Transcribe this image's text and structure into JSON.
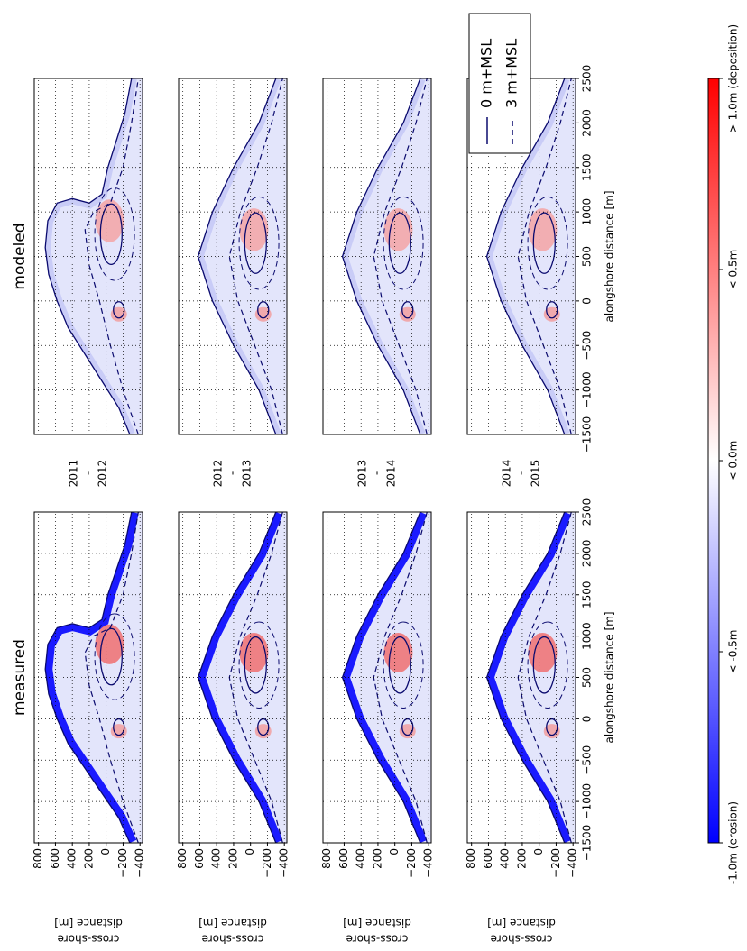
{
  "chart_data": {
    "type": "heatmap",
    "columns": [
      "measured",
      "modeled"
    ],
    "periods": [
      [
        "2011",
        "-",
        "2012"
      ],
      [
        "2012",
        "-",
        "2013"
      ],
      [
        "2013",
        "-",
        "2014"
      ],
      [
        "2014",
        "-",
        "2015"
      ]
    ],
    "xlabel": "alongshore distance [m]",
    "ylabel": [
      "cross-shore",
      "distance [m]"
    ],
    "xlim": [
      -1500,
      2500
    ],
    "xticks": [
      {
        "value": -1500,
        "label": "−1500"
      },
      {
        "value": -1000,
        "label": "−1000"
      },
      {
        "value": -500,
        "label": "−500"
      },
      0,
      500,
      1000,
      1500,
      2000,
      2500
    ],
    "ylim": [
      -430,
      850
    ],
    "yticks": [
      800,
      600,
      400,
      200,
      0,
      {
        "value": -200,
        "label": "−200"
      },
      {
        "value": -400,
        "label": "−400"
      }
    ],
    "grid": true,
    "legend": {
      "position": "upper right",
      "entries": [
        {
          "name": "0 m+MSL",
          "style": "solid",
          "color": "#0a0a6e"
        },
        {
          "name": "3 m+MSL",
          "style": "dashed",
          "color": "#0a0a6e"
        }
      ]
    },
    "colorbar": {
      "clim": [
        -1,
        1
      ],
      "colors": [
        "#0000ff",
        "#ffffff",
        "#ff0000"
      ],
      "ticks": [
        {
          "value": -1,
          "label": "-1.0m (erosion)"
        },
        {
          "value": -0.5,
          "label": "< -0.5m"
        },
        {
          "value": 0,
          "label": "< 0.0m"
        },
        {
          "value": 0.5,
          "label": "< 0.5m"
        },
        {
          "value": 1,
          "label": "> 1.0m (deposition)"
        }
      ]
    }
  }
}
